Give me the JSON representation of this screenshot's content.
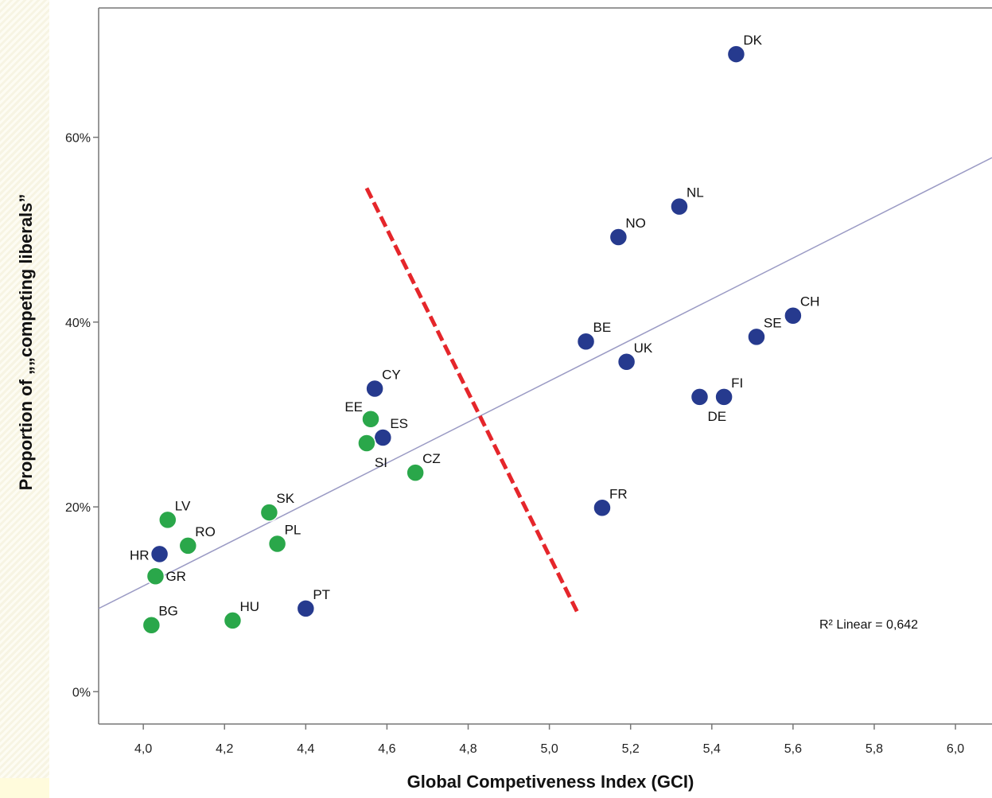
{
  "chart_data": {
    "type": "scatter",
    "title": "",
    "xlabel": "Global Competiveness Index (GCI)",
    "ylabel": "Proportion of „„competing liberals”",
    "xlim": [
      3.89,
      6.09
    ],
    "ylim": [
      -0.035,
      0.74
    ],
    "x_ticks": [
      "4,0",
      "4,2",
      "4,4",
      "4,6",
      "4,8",
      "5,0",
      "5,2",
      "5,4",
      "5,6",
      "5,8",
      "6,0"
    ],
    "x_tick_values": [
      4.0,
      4.2,
      4.4,
      4.6,
      4.8,
      5.0,
      5.2,
      5.4,
      5.6,
      5.8,
      6.0
    ],
    "y_ticks": [
      "0%",
      "20%",
      "40%",
      "60%"
    ],
    "y_tick_values": [
      0.0,
      0.2,
      0.4,
      0.6
    ],
    "grid": false,
    "colors": {
      "group_blue": "#263a8e",
      "group_green": "#2aa74a",
      "fit_line": "#9a9ac4",
      "divider": "#e5262b",
      "marker_edge": "#ffffff"
    },
    "points": [
      {
        "label": "DK",
        "x": 5.46,
        "y": 0.69,
        "group": "blue",
        "label_pos": "upper-right"
      },
      {
        "label": "NL",
        "x": 5.32,
        "y": 0.525,
        "group": "blue",
        "label_pos": "upper-right"
      },
      {
        "label": "NO",
        "x": 5.17,
        "y": 0.492,
        "group": "blue",
        "label_pos": "upper-right"
      },
      {
        "label": "CH",
        "x": 5.6,
        "y": 0.407,
        "group": "blue",
        "label_pos": "upper-right"
      },
      {
        "label": "SE",
        "x": 5.51,
        "y": 0.384,
        "group": "blue",
        "label_pos": "upper-right"
      },
      {
        "label": "BE",
        "x": 5.09,
        "y": 0.379,
        "group": "blue",
        "label_pos": "upper-right"
      },
      {
        "label": "UK",
        "x": 5.19,
        "y": 0.357,
        "group": "blue",
        "label_pos": "upper-right"
      },
      {
        "label": "FI",
        "x": 5.43,
        "y": 0.319,
        "group": "blue",
        "label_pos": "upper-right"
      },
      {
        "label": "DE",
        "x": 5.37,
        "y": 0.319,
        "group": "blue",
        "label_pos": "lower-right"
      },
      {
        "label": "CY",
        "x": 4.57,
        "y": 0.328,
        "group": "blue",
        "label_pos": "upper-right"
      },
      {
        "label": "ES",
        "x": 4.59,
        "y": 0.275,
        "group": "blue",
        "label_pos": "upper-right"
      },
      {
        "label": "FR",
        "x": 5.13,
        "y": 0.199,
        "group": "blue",
        "label_pos": "upper-right"
      },
      {
        "label": "HR",
        "x": 4.04,
        "y": 0.149,
        "group": "blue",
        "label_pos": "left"
      },
      {
        "label": "PT",
        "x": 4.4,
        "y": 0.09,
        "group": "blue",
        "label_pos": "upper-right"
      },
      {
        "label": "EE",
        "x": 4.56,
        "y": 0.295,
        "group": "green",
        "label_pos": "upper-left"
      },
      {
        "label": "SI",
        "x": 4.55,
        "y": 0.269,
        "group": "green",
        "label_pos": "lower-right"
      },
      {
        "label": "CZ",
        "x": 4.67,
        "y": 0.237,
        "group": "green",
        "label_pos": "upper-right"
      },
      {
        "label": "SK",
        "x": 4.31,
        "y": 0.194,
        "group": "green",
        "label_pos": "upper-right"
      },
      {
        "label": "LV",
        "x": 4.06,
        "y": 0.186,
        "group": "green",
        "label_pos": "upper-right"
      },
      {
        "label": "RO",
        "x": 4.11,
        "y": 0.158,
        "group": "green",
        "label_pos": "upper-right"
      },
      {
        "label": "PL",
        "x": 4.33,
        "y": 0.16,
        "group": "green",
        "label_pos": "upper-right"
      },
      {
        "label": "GR",
        "x": 4.03,
        "y": 0.125,
        "group": "green",
        "label_pos": "right"
      },
      {
        "label": "HU",
        "x": 4.22,
        "y": 0.077,
        "group": "green",
        "label_pos": "upper-right"
      },
      {
        "label": "BG",
        "x": 4.02,
        "y": 0.072,
        "group": "green",
        "label_pos": "upper-right"
      }
    ],
    "fit_line": {
      "type": "linear",
      "x": [
        3.89,
        6.09
      ],
      "y": [
        0.09,
        0.578
      ]
    },
    "divider_line": {
      "x": [
        4.55,
        5.07
      ],
      "y": [
        0.545,
        0.085
      ]
    },
    "annotation": "R² Linear = 0,642",
    "annotation_pos": {
      "x": 5.67,
      "y": 0.068
    }
  }
}
